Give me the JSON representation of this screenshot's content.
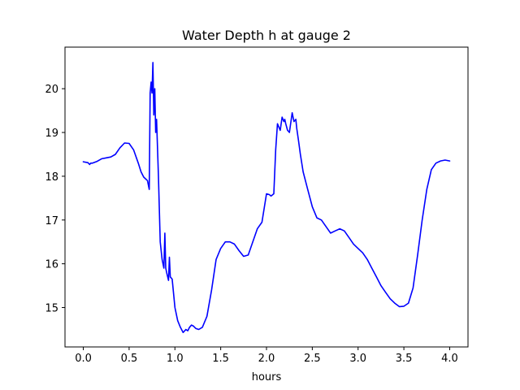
{
  "chart_data": {
    "type": "line",
    "title": "Water Depth h at gauge 2",
    "xlabel": "hours",
    "ylabel": "",
    "xlim": [
      -0.2,
      4.2
    ],
    "ylim": [
      14.1,
      20.95
    ],
    "xticks": [
      0.0,
      0.5,
      1.0,
      1.5,
      2.0,
      2.5,
      3.0,
      3.5,
      4.0
    ],
    "xtick_labels": [
      "0.0",
      "0.5",
      "1.0",
      "1.5",
      "2.0",
      "2.5",
      "3.0",
      "3.5",
      "4.0"
    ],
    "yticks": [
      15,
      16,
      17,
      18,
      19,
      20
    ],
    "ytick_labels": [
      "15",
      "16",
      "17",
      "18",
      "19",
      "20"
    ],
    "grid": false,
    "colors": {
      "series": "#0000ff",
      "axes": "#000000",
      "background": "#ffffff"
    },
    "series": [
      {
        "color": "#0000ff",
        "x": [
          0.0,
          0.05,
          0.07,
          0.08,
          0.1,
          0.15,
          0.2,
          0.25,
          0.3,
          0.35,
          0.4,
          0.45,
          0.5,
          0.55,
          0.6,
          0.63,
          0.66,
          0.7,
          0.72,
          0.73,
          0.74,
          0.75,
          0.76,
          0.77,
          0.78,
          0.79,
          0.8,
          0.82,
          0.84,
          0.86,
          0.88,
          0.89,
          0.9,
          0.91,
          0.93,
          0.94,
          0.95,
          0.97,
          1.0,
          1.03,
          1.06,
          1.09,
          1.12,
          1.14,
          1.16,
          1.18,
          1.2,
          1.23,
          1.26,
          1.3,
          1.35,
          1.4,
          1.45,
          1.5,
          1.55,
          1.6,
          1.65,
          1.7,
          1.75,
          1.8,
          1.85,
          1.9,
          1.95,
          2.0,
          2.03,
          2.05,
          2.08,
          2.1,
          2.12,
          2.15,
          2.17,
          2.19,
          2.2,
          2.21,
          2.23,
          2.25,
          2.28,
          2.3,
          2.32,
          2.33,
          2.35,
          2.37,
          2.4,
          2.45,
          2.5,
          2.55,
          2.6,
          2.65,
          2.7,
          2.75,
          2.8,
          2.85,
          2.9,
          2.95,
          3.0,
          3.05,
          3.1,
          3.15,
          3.2,
          3.25,
          3.3,
          3.35,
          3.4,
          3.45,
          3.5,
          3.55,
          3.6,
          3.65,
          3.7,
          3.75,
          3.8,
          3.85,
          3.9,
          3.95,
          4.0
        ],
        "y": [
          18.33,
          18.31,
          18.27,
          18.3,
          18.3,
          18.34,
          18.4,
          18.42,
          18.44,
          18.5,
          18.65,
          18.76,
          18.75,
          18.6,
          18.3,
          18.1,
          17.98,
          17.9,
          17.7,
          19.9,
          20.15,
          19.9,
          20.6,
          19.4,
          20.0,
          19.0,
          19.3,
          18.0,
          16.5,
          16.1,
          15.9,
          16.7,
          15.9,
          15.8,
          15.62,
          16.15,
          15.7,
          15.65,
          15.0,
          14.7,
          14.55,
          14.43,
          14.5,
          14.47,
          14.55,
          14.6,
          14.58,
          14.52,
          14.5,
          14.55,
          14.8,
          15.4,
          16.1,
          16.35,
          16.5,
          16.5,
          16.45,
          16.3,
          16.17,
          16.2,
          16.5,
          16.8,
          16.95,
          17.6,
          17.58,
          17.55,
          17.6,
          18.6,
          19.2,
          19.05,
          19.35,
          19.25,
          19.3,
          19.2,
          19.05,
          19.0,
          19.45,
          19.25,
          19.3,
          19.1,
          18.8,
          18.5,
          18.1,
          17.7,
          17.3,
          17.05,
          17.0,
          16.85,
          16.7,
          16.75,
          16.8,
          16.75,
          16.6,
          16.45,
          16.35,
          16.25,
          16.1,
          15.9,
          15.7,
          15.5,
          15.35,
          15.2,
          15.1,
          15.02,
          15.03,
          15.1,
          15.45,
          16.2,
          17.0,
          17.7,
          18.15,
          18.3,
          18.35,
          18.37,
          18.35
        ]
      }
    ]
  }
}
